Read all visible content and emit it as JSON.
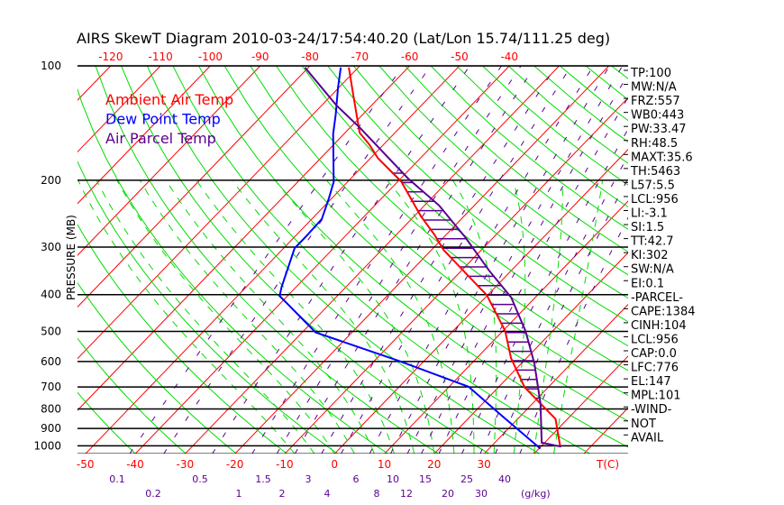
{
  "chart_data": {
    "type": "skewt",
    "title": "AIRS SkewT Diagram 2010-03-24/17:54:40.20 (Lat/Lon 15.74/111.25 deg)",
    "ylabel": "PRESSURE (MB)",
    "xlabel": "T(C)",
    "mixing_ratio_unit": "(g/kg)",
    "pressure_ticks": [
      100,
      200,
      300,
      400,
      500,
      600,
      700,
      800,
      900,
      1000
    ],
    "pressure_range": [
      100,
      1050
    ],
    "top_temp_ticks": [
      -120,
      -110,
      -100,
      -90,
      -80,
      -70,
      -60,
      -50,
      -40
    ],
    "bottom_temp_ticks": [
      -50,
      -40,
      -30,
      -20,
      -10,
      0,
      10,
      20,
      30
    ],
    "mixing_ratio_ticks": [
      "0.1",
      "0.2",
      "0.5",
      "1",
      "1.5",
      "2",
      "3",
      "4",
      "6",
      "8",
      "10",
      "12",
      "15",
      "20",
      "25",
      "30",
      "40"
    ],
    "legend": [
      {
        "name": "Ambient Air Temp",
        "color": "#ff0000"
      },
      {
        "name": "Dew Point Temp",
        "color": "#0000ff"
      },
      {
        "name": "Air Parcel Temp",
        "color": "#5a0090"
      }
    ],
    "series": [
      {
        "name": "Ambient Air Temp",
        "color": "#ff0000",
        "points": [
          [
            101,
            -71.9
          ],
          [
            118,
            -66.1
          ],
          [
            150,
            -57.1
          ],
          [
            161,
            -52.9
          ],
          [
            175,
            -48.5
          ],
          [
            202,
            -39.2
          ],
          [
            249,
            -28.6
          ],
          [
            278,
            -22.4
          ],
          [
            305,
            -17.6
          ],
          [
            382,
            -3.3
          ],
          [
            401,
            -0.2
          ],
          [
            498,
            10.4
          ],
          [
            588,
            16.9
          ],
          [
            702,
            25.3
          ],
          [
            850,
            37.6
          ],
          [
            1005,
            43.9
          ]
        ]
      },
      {
        "name": "Dew Point Temp",
        "color": "#0000ff",
        "points": [
          [
            101,
            -73.5
          ],
          [
            114,
            -70.2
          ],
          [
            134,
            -65.5
          ],
          [
            151,
            -62.2
          ],
          [
            202,
            -52.8
          ],
          [
            223,
            -50.6
          ],
          [
            253,
            -48.0
          ],
          [
            281,
            -47.8
          ],
          [
            302,
            -47.8
          ],
          [
            382,
            -42.9
          ],
          [
            403,
            -41.6
          ],
          [
            503,
            -27.3
          ],
          [
            598,
            -5.0
          ],
          [
            699,
            13.9
          ],
          [
            831,
            26.0
          ],
          [
            1017,
            40.3
          ]
        ]
      },
      {
        "name": "Air Parcel Temp",
        "color": "#5a0090",
        "points": [
          [
            101,
            -80.7
          ],
          [
            127,
            -67.1
          ],
          [
            146,
            -57.8
          ],
          [
            198,
            -38.5
          ],
          [
            233,
            -27.1
          ],
          [
            283,
            -15.6
          ],
          [
            346,
            -4.4
          ],
          [
            407,
            5.2
          ],
          [
            498,
            14.5
          ],
          [
            607,
            22.6
          ],
          [
            774,
            31.6
          ],
          [
            981,
            39.4
          ],
          [
            1005,
            44.1
          ]
        ]
      }
    ],
    "colors": {
      "isotherm": "#ff0000",
      "dry_adiabat": "#00dd00",
      "moist_adiabat": "#00dd00",
      "mixing_ratio": "#5a0090",
      "isobar": "#000000"
    }
  },
  "indices": [
    "TP:100",
    "MW:N/A",
    "FRZ:557",
    "WB0:443",
    "PW:33.47",
    "RH:48.5",
    "MAXT:35.6",
    "TH:5463",
    "L57:5.5",
    "LCL:956",
    "LI:-3.1",
    "SI:1.5",
    "TT:42.7",
    "KI:302",
    "SW:N/A",
    "EI:0.1",
    "-PARCEL-",
    "CAPE:1384",
    "CINH:104",
    "LCL:956",
    "CAP:0.0",
    "LFC:776",
    "EL:147",
    "MPL:101",
    "-WIND-",
    "NOT",
    "AVAIL"
  ]
}
